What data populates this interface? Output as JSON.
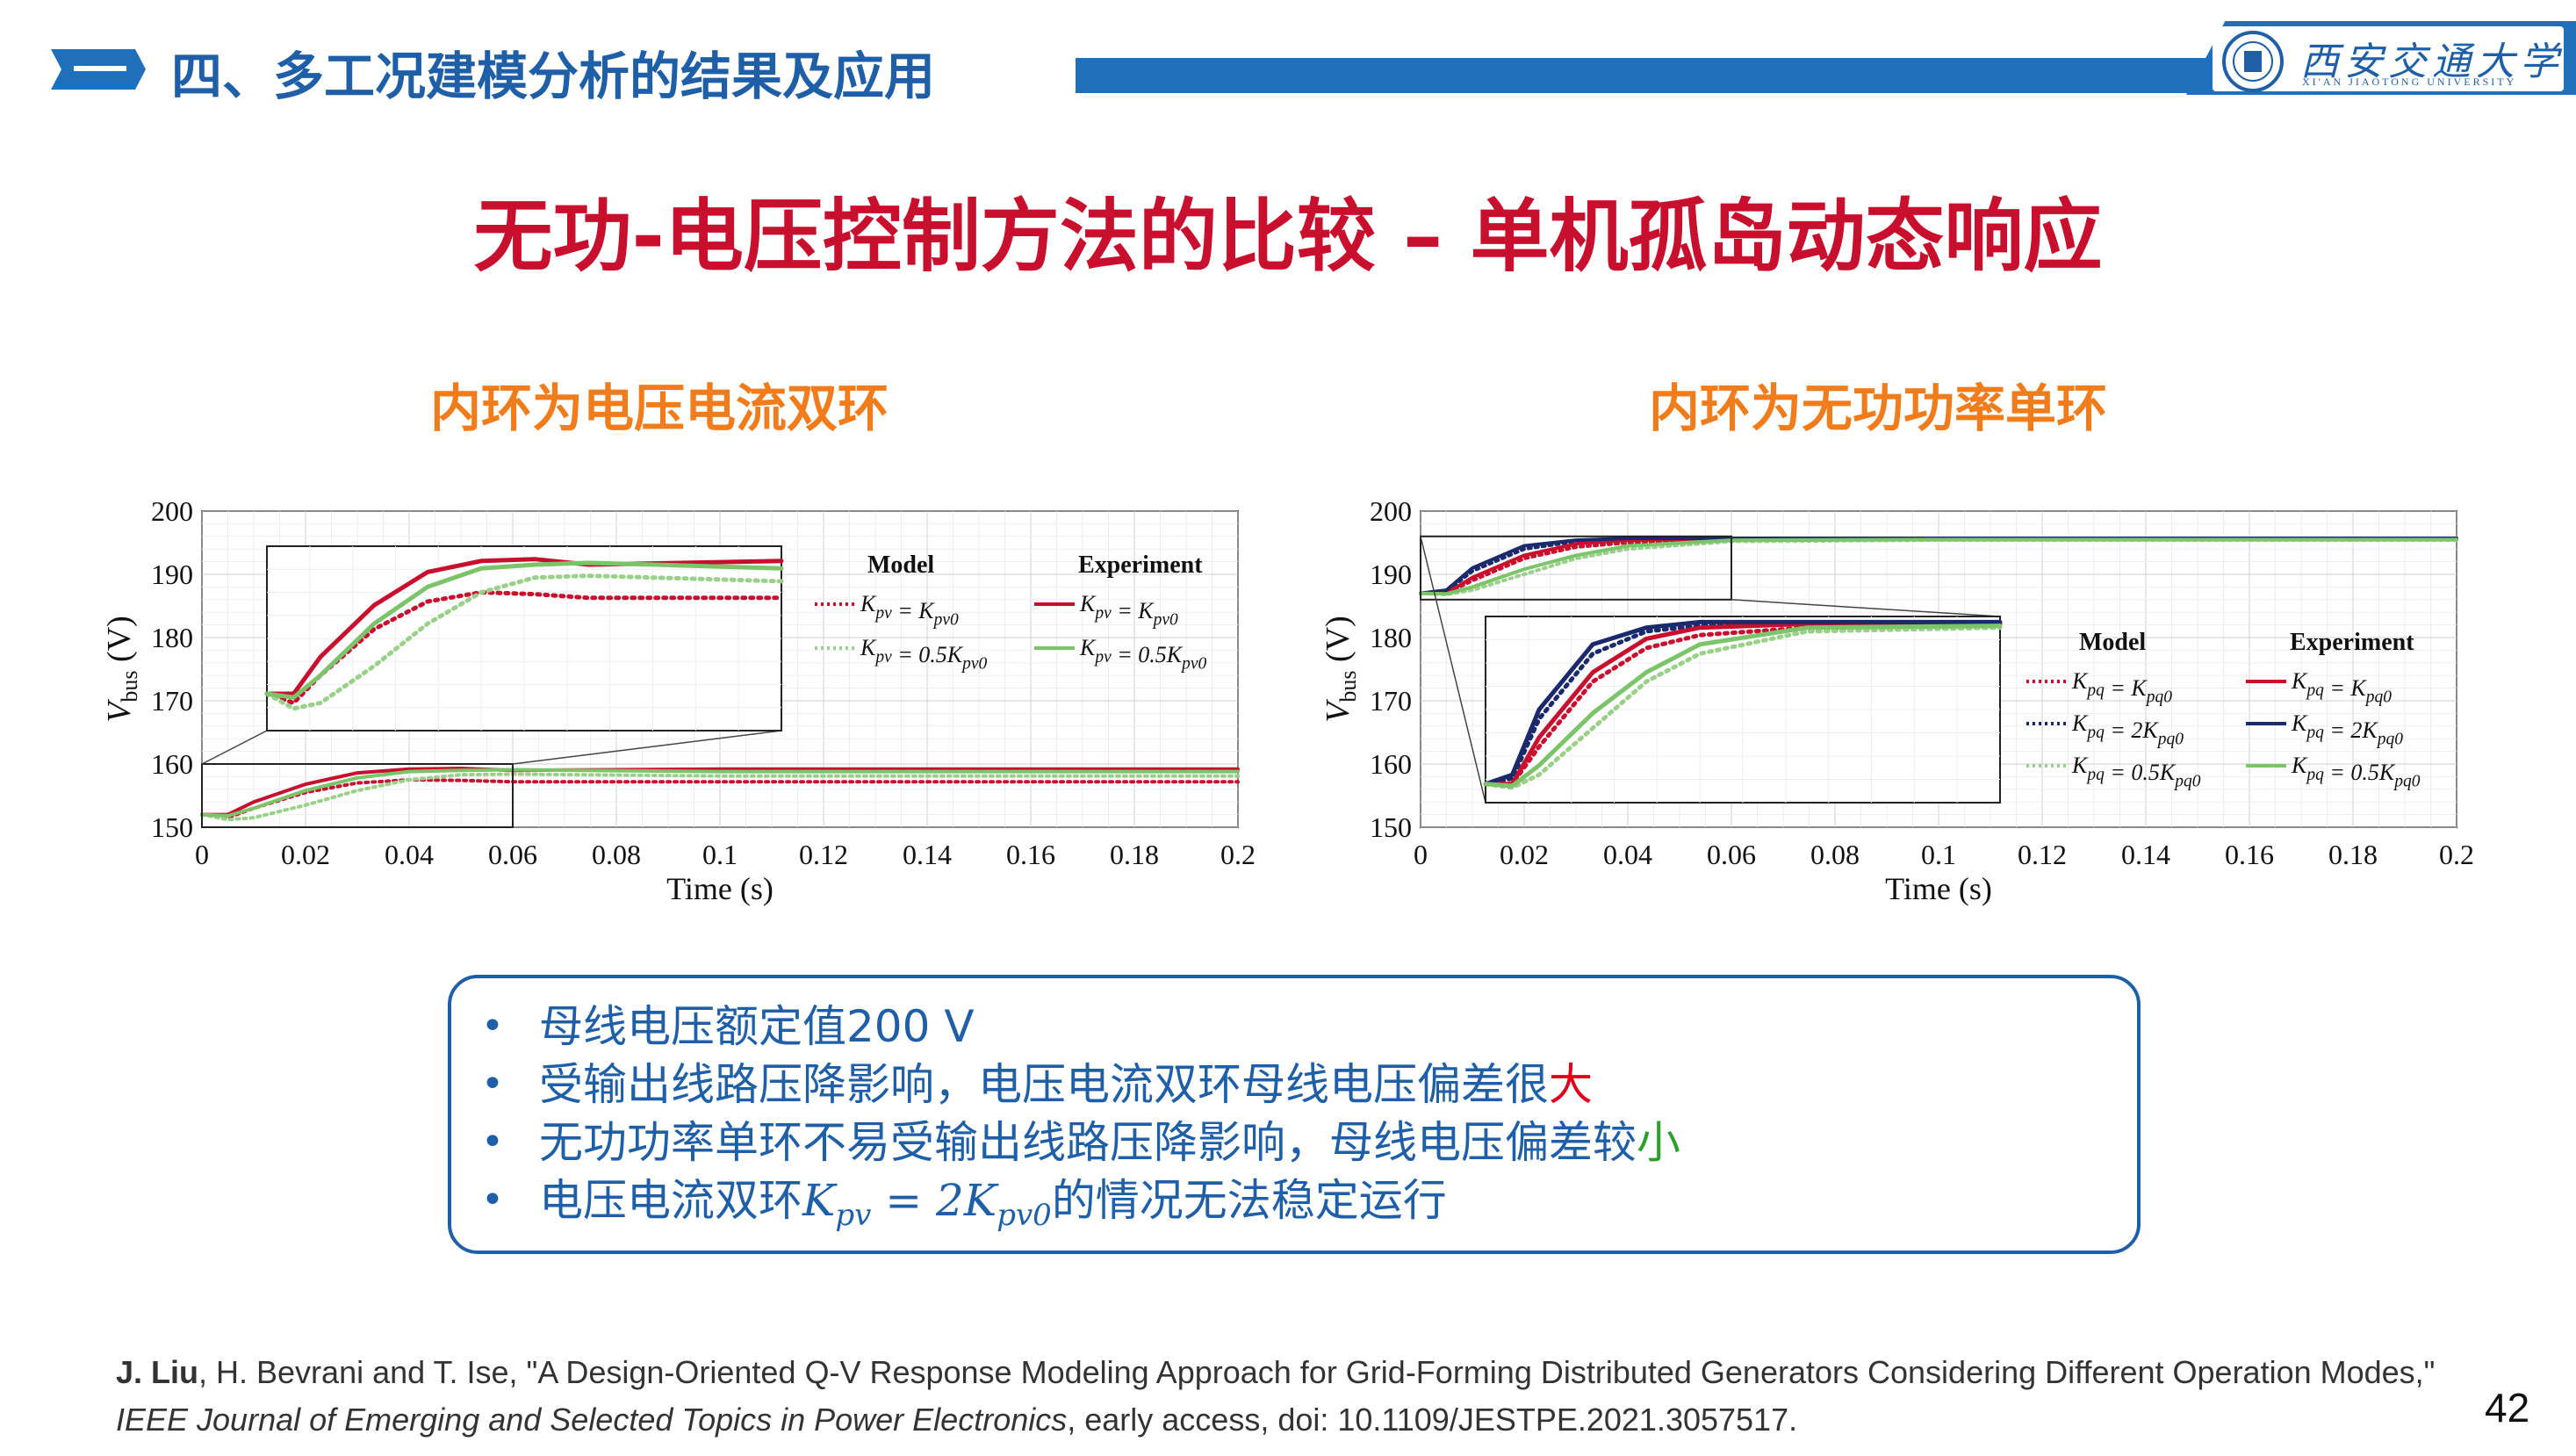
{
  "header": {
    "section_title": "四、多工况建模分析的结果及应用",
    "university_name": "西安交通大学",
    "university_sub": "XI'AN JIAOTONG UNIVERSITY"
  },
  "slide_title": "无功-电压控制方法的比较 – 单机孤岛动态响应",
  "left_panel": {
    "subtitle": "内环为电压电流双环"
  },
  "right_panel": {
    "subtitle": "内环为无功功率单环"
  },
  "bullets": {
    "b1": "母线电压额定值200 V",
    "b2_a": "受输出线路压降影响，电压电流双环母线电压偏差很",
    "b2_b": "大",
    "b3_a": "无功功率单环不易受输出线路压降影响，母线电压偏差较",
    "b3_b": "小",
    "b4_a": "电压电流双环",
    "b4_math": "K_pv = 2K_pv0",
    "b4_b": "的情况无法稳定运行"
  },
  "reference": {
    "author_bold": "J. Liu",
    "line1_rest": ", H. Bevrani and T. Ise, \"A Design-Oriented Q-V Response Modeling Approach for Grid-Forming Distributed Generators Considering Different Operation Modes,\"",
    "journal": "IEEE Journal of Emerging and Selected Topics in Power Electronics",
    "line2_rest": ", early access, doi: 10.1109/JESTPE.2021.3057517."
  },
  "page_number": "42",
  "colors": {
    "blue": "#1f5fa8",
    "red": "#c8102e",
    "orange": "#f07c1c",
    "green": "#2ca02c"
  },
  "chart_data": [
    {
      "type": "line",
      "xlabel": "Time (s)",
      "ylabel": "V_bus (V)",
      "xlim": [
        0,
        0.2
      ],
      "ylim": [
        150,
        200
      ],
      "xticks": [
        "0",
        "0.02",
        "0.04",
        "0.06",
        "0.08",
        "0.1",
        "0.12",
        "0.14",
        "0.16",
        "0.18",
        "0.2"
      ],
      "yticks": [
        "150",
        "160",
        "170",
        "180",
        "190",
        "200"
      ],
      "legend_headers": [
        "Model",
        "Experiment"
      ],
      "legend_labels": [
        "K_pv = K_pv0",
        "K_pv = 0.5K_pv0"
      ],
      "grid": true,
      "inset_zoom": {
        "x_range": [
          0,
          0.06
        ],
        "y_range": [
          150,
          160
        ]
      },
      "series": [
        {
          "name": "Model K_pv = K_pv0",
          "color": "#c8102e",
          "style": "dotted",
          "x": [
            0,
            0.005,
            0.01,
            0.02,
            0.03,
            0.04,
            0.05,
            0.06,
            0.1,
            0.2
          ],
          "y": [
            152,
            151.5,
            153,
            155.5,
            157,
            157.5,
            157.4,
            157.2,
            157.2,
            157.2
          ]
        },
        {
          "name": "Model K_pv = 0.5K_pv0",
          "color": "#9ad08a",
          "style": "dotted",
          "x": [
            0,
            0.005,
            0.01,
            0.02,
            0.03,
            0.04,
            0.05,
            0.06,
            0.1,
            0.2
          ],
          "y": [
            152,
            151.2,
            151.5,
            153.5,
            155.8,
            157.5,
            158.3,
            158.4,
            158.1,
            158.1
          ]
        },
        {
          "name": "Experiment K_pv = K_pv0",
          "color": "#c8102e",
          "style": "solid",
          "x": [
            0,
            0.005,
            0.01,
            0.02,
            0.03,
            0.04,
            0.05,
            0.06,
            0.1,
            0.2
          ],
          "y": [
            152,
            152,
            154,
            156.8,
            158.6,
            159.2,
            159.3,
            159,
            159.2,
            159.2
          ]
        },
        {
          "name": "Experiment K_pv = 0.5K_pv0",
          "color": "#7cc46a",
          "style": "solid",
          "x": [
            0,
            0.005,
            0.01,
            0.02,
            0.03,
            0.04,
            0.05,
            0.06,
            0.1,
            0.2
          ],
          "y": [
            152,
            151.8,
            153,
            155.8,
            157.8,
            158.8,
            159,
            159.1,
            158.8,
            158.8
          ]
        }
      ]
    },
    {
      "type": "line",
      "xlabel": "Time (s)",
      "ylabel": "V_bus (V)",
      "xlim": [
        0,
        0.2
      ],
      "ylim": [
        150,
        200
      ],
      "xticks": [
        "0",
        "0.02",
        "0.04",
        "0.06",
        "0.08",
        "0.1",
        "0.12",
        "0.14",
        "0.16",
        "0.18",
        "0.2"
      ],
      "yticks": [
        "150",
        "160",
        "170",
        "180",
        "190",
        "200"
      ],
      "legend_headers": [
        "Model",
        "Experiment"
      ],
      "legend_labels": [
        "K_pq = K_pq0",
        "K_pq = 2K_pq0",
        "K_pq = 0.5K_pq0"
      ],
      "grid": true,
      "inset_zoom": {
        "x_range": [
          0,
          0.06
        ],
        "y_range": [
          186,
          196
        ]
      },
      "series": [
        {
          "name": "Model K_pq = K_pq0",
          "color": "#c8102e",
          "style": "dotted",
          "x": [
            0,
            0.005,
            0.01,
            0.02,
            0.03,
            0.04,
            0.06,
            0.1,
            0.2
          ],
          "y": [
            187,
            187,
            189,
            192.5,
            194.3,
            195,
            195.4,
            195.5,
            195.5
          ]
        },
        {
          "name": "Model K_pq = 2K_pq0",
          "color": "#1a2a6c",
          "style": "dotted",
          "x": [
            0,
            0.005,
            0.01,
            0.02,
            0.03,
            0.04,
            0.06,
            0.1,
            0.2
          ],
          "y": [
            187,
            187.3,
            190.5,
            194,
            195.2,
            195.5,
            195.6,
            195.6,
            195.6
          ]
        },
        {
          "name": "Model K_pq = 0.5K_pq0",
          "color": "#9ad08a",
          "style": "dotted",
          "x": [
            0,
            0.005,
            0.01,
            0.02,
            0.03,
            0.04,
            0.06,
            0.1,
            0.2
          ],
          "y": [
            187,
            186.8,
            187.5,
            190,
            192.5,
            194,
            195.2,
            195.4,
            195.4
          ]
        },
        {
          "name": "Experiment K_pq = K_pq0",
          "color": "#c8102e",
          "style": "solid",
          "x": [
            0,
            0.005,
            0.01,
            0.02,
            0.03,
            0.04,
            0.06,
            0.1,
            0.2
          ],
          "y": [
            187,
            187,
            189.5,
            193,
            194.8,
            195.4,
            195.6,
            195.6,
            195.6
          ]
        },
        {
          "name": "Experiment K_pq = 2K_pq0",
          "color": "#1a2a6c",
          "style": "solid",
          "x": [
            0,
            0.005,
            0.01,
            0.02,
            0.03,
            0.04,
            0.06,
            0.1,
            0.2
          ],
          "y": [
            187,
            187.5,
            191,
            194.5,
            195.4,
            195.7,
            195.7,
            195.7,
            195.7
          ]
        },
        {
          "name": "Experiment K_pq = 0.5K_pq0",
          "color": "#7cc46a",
          "style": "solid",
          "x": [
            0,
            0.005,
            0.01,
            0.02,
            0.03,
            0.04,
            0.06,
            0.1,
            0.2
          ],
          "y": [
            187,
            186.9,
            188,
            190.8,
            193,
            194.5,
            195.4,
            195.5,
            195.5
          ]
        }
      ]
    }
  ]
}
